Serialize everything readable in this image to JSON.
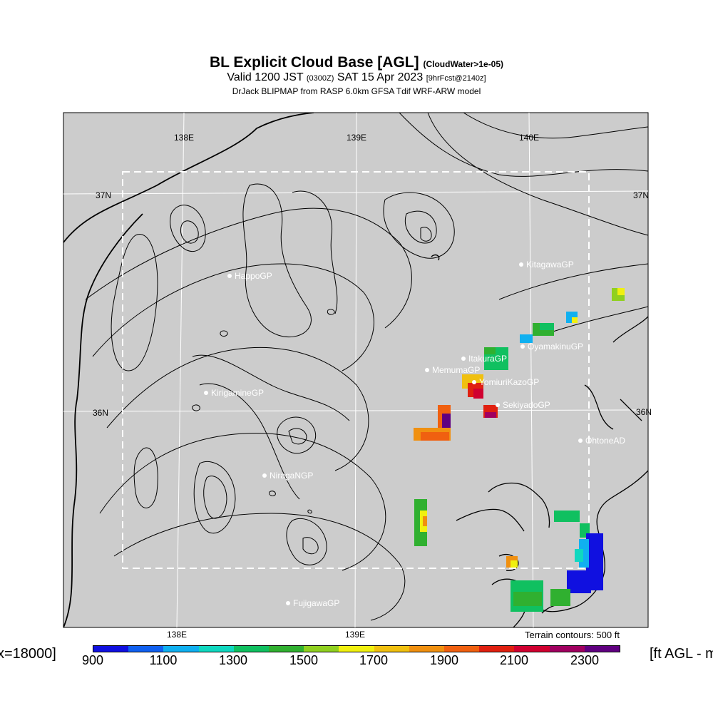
{
  "title": {
    "main": "BL Explicit Cloud Base [AGL]",
    "qualifier": "(CloudWater>1e-05)",
    "valid_prefix": "Valid 1200 JST",
    "valid_zulu": "(0300Z)",
    "valid_date": "SAT 15 Apr 2023",
    "forecast": "[9hrFcst@2140z]",
    "model": "DrJack BLIPMAP from RASP 6.0km GFSA Tdif WRF-ARW model"
  },
  "map": {
    "lon_labels_top": [
      "138E",
      "139E",
      "140E"
    ],
    "lon_labels_bottom": [
      "138E",
      "139E"
    ],
    "lat_labels_left": [
      "37N",
      "36N"
    ],
    "lat_labels_right": [
      "37N",
      "36N"
    ],
    "sites": [
      "KitagawaGP",
      "HappoGP",
      "OyamakinuGP",
      "ItakuraGP",
      "MemumaGP",
      "YomiuriKazoGP",
      "KirigamineGP",
      "SekiyadoGP",
      "OhtoneAD",
      "NiragaNGP",
      "FujigawaGP"
    ],
    "terrain_note": "Terrain contours: 500 ft",
    "background_color": "#cccccc"
  },
  "colorbar": {
    "colors": [
      "#1010e0",
      "#1060f0",
      "#10b0f0",
      "#10d8c0",
      "#10c060",
      "#30b030",
      "#90d020",
      "#f0f010",
      "#f0c010",
      "#f09010",
      "#f06010",
      "#e02010",
      "#d00030",
      "#a00060",
      "#600080"
    ],
    "labels": [
      "900",
      "1100",
      "1300",
      "1500",
      "1700",
      "1900",
      "2100",
      "2300"
    ],
    "left_edge_text": "x=18000]",
    "right_edge_text": "[ft AGL - m"
  }
}
